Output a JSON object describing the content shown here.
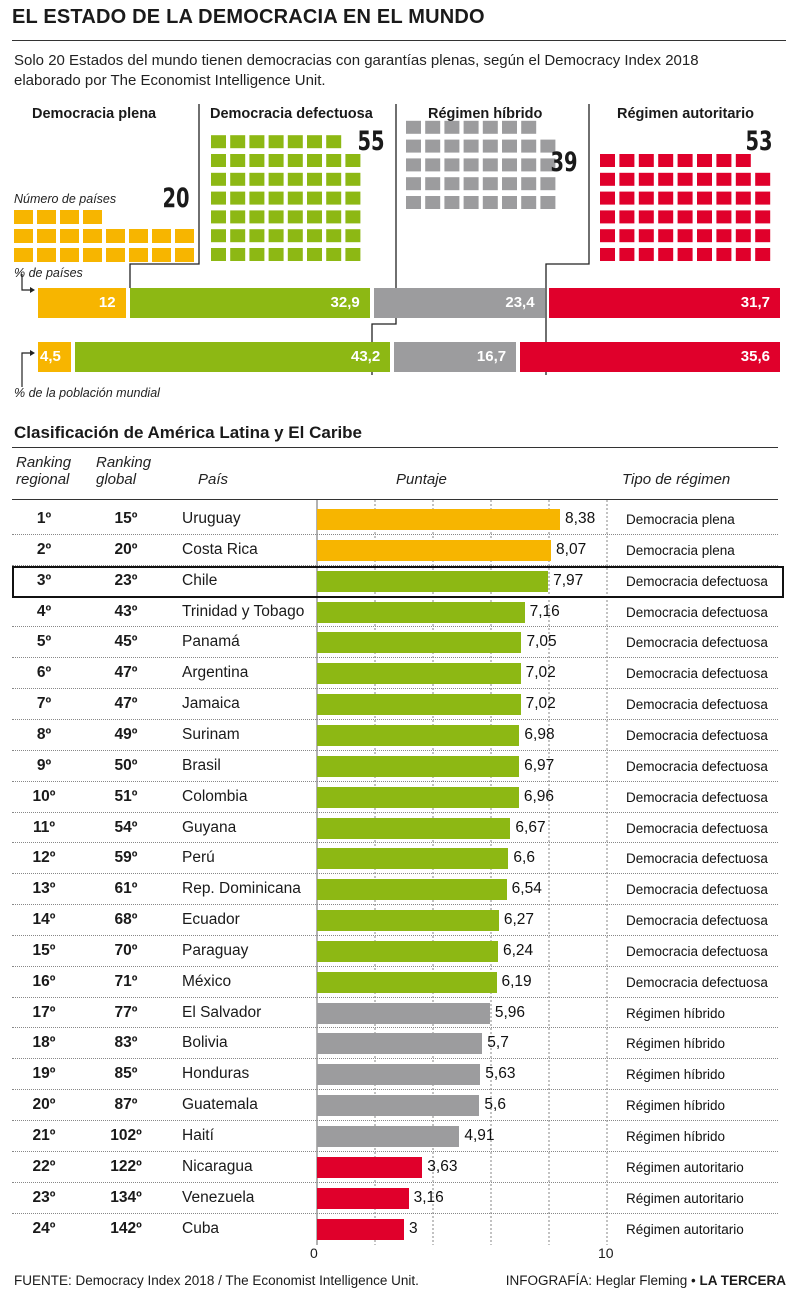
{
  "title": "EL ESTADO DE LA DEMOCRACIA EN EL MUNDO",
  "intro_line1": "Solo 20 Estados del mundo tienen democracias con garantías plenas, según el Democracy Index 2018",
  "intro_line2": "elaborado por The Economist Intelligence Unit.",
  "colors": {
    "plena": "#f7b500",
    "defectuosa": "#8db814",
    "hibrido": "#9c9c9e",
    "autoritario": "#e0002b"
  },
  "world": {
    "categories": [
      {
        "key": "plena",
        "label": "Democracia plena",
        "count": "20",
        "pct_countries": "12",
        "pct_population": "4,5"
      },
      {
        "key": "defectuosa",
        "label": "Democracia defectuosa",
        "count": "55",
        "pct_countries": "32,9",
        "pct_population": "43,2"
      },
      {
        "key": "hibrido",
        "label": "Régimen híbrido",
        "count": "39",
        "pct_countries": "23,4",
        "pct_population": "16,7"
      },
      {
        "key": "autoritario",
        "label": "Régimen autoritario",
        "count": "53",
        "pct_countries": "31,7",
        "pct_population": "35,6"
      }
    ],
    "count_label": "Número de países",
    "pct_countries_label": "% de países",
    "pct_population_label": "% de la población mundial"
  },
  "section2_title": "Clasificación de América Latina y El Caribe",
  "headers": {
    "regional_line1": "Ranking",
    "regional_line2": "regional",
    "global_line1": "Ranking",
    "global_line2": "global",
    "country": "País",
    "score": "Puntaje",
    "regime": "Tipo de régimen"
  },
  "chart_data": {
    "type": "bar",
    "orientation": "horizontal",
    "xlim": [
      0,
      10
    ],
    "x_ticks": [
      "0",
      "10"
    ],
    "highlight": "Chile",
    "rows": [
      {
        "regional": "1º",
        "global": "15º",
        "country": "Uruguay",
        "score": 8.38,
        "label": "8,38",
        "regime": "Democracia plena",
        "key": "plena"
      },
      {
        "regional": "2º",
        "global": "20º",
        "country": "Costa Rica",
        "score": 8.07,
        "label": "8,07",
        "regime": "Democracia plena",
        "key": "plena"
      },
      {
        "regional": "3º",
        "global": "23º",
        "country": "Chile",
        "score": 7.97,
        "label": "7,97",
        "regime": "Democracia defectuosa",
        "key": "defectuosa"
      },
      {
        "regional": "4º",
        "global": "43º",
        "country": "Trinidad y Tobago",
        "score": 7.16,
        "label": "7,16",
        "regime": "Democracia defectuosa",
        "key": "defectuosa"
      },
      {
        "regional": "5º",
        "global": "45º",
        "country": "Panamá",
        "score": 7.05,
        "label": "7,05",
        "regime": "Democracia defectuosa",
        "key": "defectuosa"
      },
      {
        "regional": "6º",
        "global": "47º",
        "country": "Argentina",
        "score": 7.02,
        "label": "7,02",
        "regime": "Democracia defectuosa",
        "key": "defectuosa"
      },
      {
        "regional": "7º",
        "global": "47º",
        "country": "Jamaica",
        "score": 7.02,
        "label": "7,02",
        "regime": "Democracia defectuosa",
        "key": "defectuosa"
      },
      {
        "regional": "8º",
        "global": "49º",
        "country": "Surinam",
        "score": 6.98,
        "label": "6,98",
        "regime": "Democracia defectuosa",
        "key": "defectuosa"
      },
      {
        "regional": "9º",
        "global": "50º",
        "country": "Brasil",
        "score": 6.97,
        "label": "6,97",
        "regime": "Democracia defectuosa",
        "key": "defectuosa"
      },
      {
        "regional": "10º",
        "global": "51º",
        "country": "Colombia",
        "score": 6.96,
        "label": "6,96",
        "regime": "Democracia defectuosa",
        "key": "defectuosa"
      },
      {
        "regional": "11º",
        "global": "54º",
        "country": "Guyana",
        "score": 6.67,
        "label": "6,67",
        "regime": "Democracia defectuosa",
        "key": "defectuosa"
      },
      {
        "regional": "12º",
        "global": "59º",
        "country": "Perú",
        "score": 6.6,
        "label": "6,6",
        "regime": "Democracia defectuosa",
        "key": "defectuosa"
      },
      {
        "regional": "13º",
        "global": "61º",
        "country": "Rep. Dominicana",
        "score": 6.54,
        "label": "6,54",
        "regime": "Democracia defectuosa",
        "key": "defectuosa"
      },
      {
        "regional": "14º",
        "global": "68º",
        "country": "Ecuador",
        "score": 6.27,
        "label": "6,27",
        "regime": "Democracia defectuosa",
        "key": "defectuosa"
      },
      {
        "regional": "15º",
        "global": "70º",
        "country": "Paraguay",
        "score": 6.24,
        "label": "6,24",
        "regime": "Democracia defectuosa",
        "key": "defectuosa"
      },
      {
        "regional": "16º",
        "global": "71º",
        "country": "México",
        "score": 6.19,
        "label": "6,19",
        "regime": "Democracia defectuosa",
        "key": "defectuosa"
      },
      {
        "regional": "17º",
        "global": "77º",
        "country": "El Salvador",
        "score": 5.96,
        "label": "5,96",
        "regime": "Régimen híbrido",
        "key": "hibrido"
      },
      {
        "regional": "18º",
        "global": "83º",
        "country": "Bolivia",
        "score": 5.7,
        "label": "5,7",
        "regime": "Régimen híbrido",
        "key": "hibrido"
      },
      {
        "regional": "19º",
        "global": "85º",
        "country": "Honduras",
        "score": 5.63,
        "label": "5,63",
        "regime": "Régimen híbrido",
        "key": "hibrido"
      },
      {
        "regional": "20º",
        "global": "87º",
        "country": "Guatemala",
        "score": 5.6,
        "label": "5,6",
        "regime": "Régimen híbrido",
        "key": "hibrido"
      },
      {
        "regional": "21º",
        "global": "102º",
        "country": "Haití",
        "score": 4.91,
        "label": "4,91",
        "regime": "Régimen híbrido",
        "key": "hibrido"
      },
      {
        "regional": "22º",
        "global": "122º",
        "country": "Nicaragua",
        "score": 3.63,
        "label": "3,63",
        "regime": "Régimen autoritario",
        "key": "autoritario"
      },
      {
        "regional": "23º",
        "global": "134º",
        "country": "Venezuela",
        "score": 3.16,
        "label": "3,16",
        "regime": "Régimen autoritario",
        "key": "autoritario"
      },
      {
        "regional": "24º",
        "global": "142º",
        "country": "Cuba",
        "score": 3,
        "label": "3",
        "regime": "Régimen autoritario",
        "key": "autoritario"
      }
    ]
  },
  "footer_source": "FUENTE: Democracy Index 2018 / The Economist Intelligence Unit.",
  "footer_credit_prefix": "INFOGRAFÍA: Heglar Fleming •",
  "footer_credit_brand": "LA TERCERA"
}
